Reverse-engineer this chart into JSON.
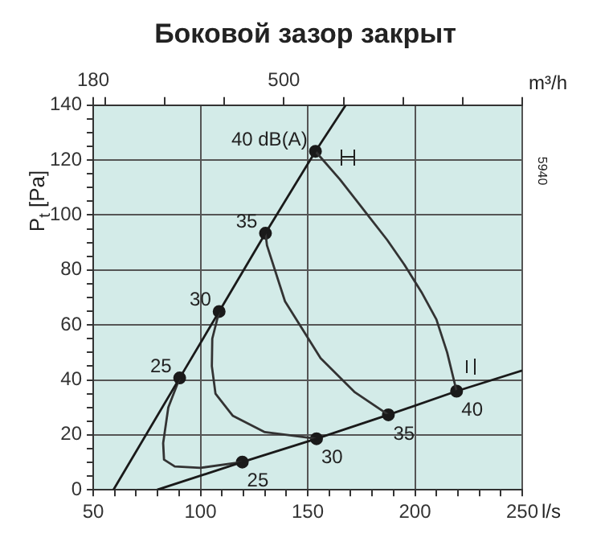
{
  "chart_data": {
    "type": "line",
    "title": "Боковой зазор закрыт",
    "xlabel": "l/s",
    "x2label": "m³/h",
    "ylabel": "P$_{t}$ [Pa]",
    "xlim": [
      50,
      250
    ],
    "xticks": [
      50,
      {
        "value": 60,
        "label": null
      },
      {
        "value": 70,
        "label": null
      },
      {
        "value": 80,
        "label": null
      },
      {
        "value": 90,
        "label": null
      },
      100,
      {
        "value": 110,
        "label": null
      },
      {
        "value": 120,
        "label": null
      },
      {
        "value": 130,
        "label": null
      },
      {
        "value": 140,
        "label": null
      },
      150,
      {
        "value": 160,
        "label": null
      },
      {
        "value": 170,
        "label": null
      },
      {
        "value": 180,
        "label": null
      },
      {
        "value": 190,
        "label": null
      },
      200,
      {
        "value": 210,
        "label": null
      },
      {
        "value": 220,
        "label": null
      },
      {
        "value": 230,
        "label": null
      },
      {
        "value": 240,
        "label": null
      },
      250
    ],
    "x2lim": [
      180,
      900
    ],
    "x2ticks": [
      180,
      {
        "value": 200,
        "label": null
      },
      {
        "value": 300,
        "label": null
      },
      {
        "value": 400,
        "label": null
      },
      500,
      {
        "value": 600,
        "label": null
      },
      {
        "value": 700,
        "label": null
      },
      {
        "value": 800,
        "label": null
      },
      {
        "value": 900,
        "label": null
      }
    ],
    "ylim": [
      0,
      140
    ],
    "yticks": [
      0,
      {
        "value": 5,
        "label": null
      },
      {
        "value": 10,
        "label": null
      },
      {
        "value": 15,
        "label": null
      },
      20,
      {
        "value": 25,
        "label": null
      },
      {
        "value": 30,
        "label": null
      },
      {
        "value": 35,
        "label": null
      },
      40,
      {
        "value": 45,
        "label": null
      },
      {
        "value": 50,
        "label": null
      },
      {
        "value": 55,
        "label": null
      },
      60,
      {
        "value": 65,
        "label": null
      },
      {
        "value": 70,
        "label": null
      },
      {
        "value": 75,
        "label": null
      },
      80,
      {
        "value": 85,
        "label": null
      },
      {
        "value": 90,
        "label": null
      },
      {
        "value": 95,
        "label": null
      },
      100,
      {
        "value": 105,
        "label": null
      },
      {
        "value": 110,
        "label": null
      },
      {
        "value": 115,
        "label": null
      },
      120,
      {
        "value": 125,
        "label": null
      },
      {
        "value": 130,
        "label": null
      },
      {
        "value": 135,
        "label": null
      },
      140
    ],
    "grid": true,
    "legend": false,
    "marker": "none",
    "line_style": "solid",
    "series": [
      {
        "color": "#1a1a1a",
        "x": [
          59.4,
          90.3,
          108.7,
          130.3,
          153.6,
          167.7
        ],
        "values": [
          0,
          40.7,
          64.9,
          93.4,
          123.2,
          140
        ]
      },
      {
        "color": "#1a1a1a",
        "x": [
          79.8,
          119.5,
          154.1,
          187.6,
          219.4,
          250
        ],
        "values": [
          0,
          10.1,
          18.6,
          27.3,
          35.9,
          43.4
        ]
      },
      {
        "color": "#333333",
        "x": [
          90.3,
          85,
          82.6,
          83,
          88,
          100,
          119.5
        ],
        "values": [
          40.7,
          30,
          17,
          11,
          8.5,
          8,
          10.1
        ]
      },
      {
        "color": "#333333",
        "x": [
          108.7,
          105.5,
          105.3,
          107,
          115,
          130,
          154.1
        ],
        "values": [
          64.9,
          55,
          45,
          35,
          27,
          21,
          18.6
        ]
      },
      {
        "color": "#333333",
        "x": [
          130.3,
          131,
          139.4,
          156,
          172,
          187.6
        ],
        "values": [
          93.4,
          89,
          68.6,
          47.9,
          35.5,
          27.3
        ]
      },
      {
        "color": "#333333",
        "x": [
          153.6,
          165,
          177,
          187,
          195,
          203,
          210,
          215,
          219.4
        ],
        "values": [
          123.2,
          113,
          101,
          91,
          82,
          72,
          62,
          50,
          35.9
        ]
      },
      {
        "type": "scatter",
        "color": "#1a1a1a",
        "marker": "circle",
        "x": [
          90.3,
          108.7,
          130.3,
          153.6,
          119.5,
          154.1,
          187.6,
          219.4
        ],
        "values": [
          40.7,
          64.9,
          93.4,
          123.2,
          10.1,
          18.6,
          27.3,
          35.9
        ]
      }
    ],
    "annotations": [
      {
        "text": "40 dB(A)",
        "x": 153.6,
        "y": 123.2
      },
      {
        "text": "35",
        "x": 130.3,
        "y": 93.4
      },
      {
        "text": "30",
        "x": 108.7,
        "y": 64.9
      },
      {
        "text": "25",
        "x": 90.3,
        "y": 40.7
      },
      {
        "text": "25",
        "x": 119.5,
        "y": 10.1
      },
      {
        "text": "30",
        "x": 154.1,
        "y": 18.6
      },
      {
        "text": "35",
        "x": 187.6,
        "y": 27.3
      },
      {
        "text": "40",
        "x": 219.4,
        "y": 35.9
      },
      "5940"
    ]
  }
}
